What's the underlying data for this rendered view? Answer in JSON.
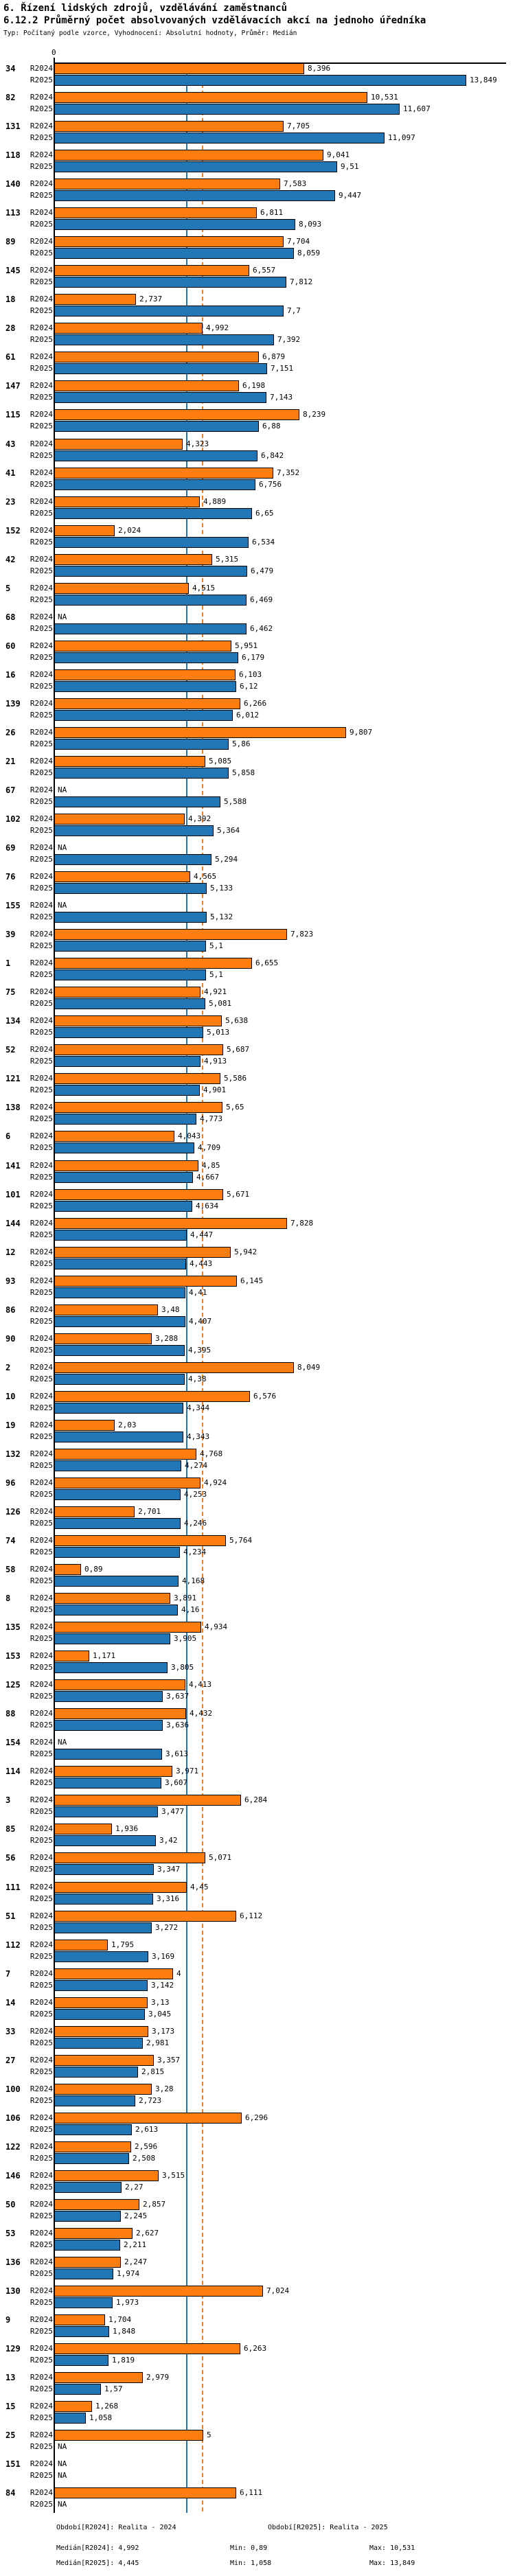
{
  "header": {
    "title_line1": "6. Řízení lidských zdrojů, vzdělávání zaměstnanců",
    "title_line2": "6.12.2 Průměrný počet absolvovaných vzdělávacích akcí na jednoho úředníka",
    "subtitle": "Typ: Počítaný podle vzorce, Vyhodnocení: Absolutní hodnoty, Průměr: Medián"
  },
  "axis": {
    "zero_label": "0"
  },
  "series_labels": {
    "r2024": "R2024",
    "r2025": "R2025"
  },
  "colors": {
    "r2024": "#fd7e0e",
    "r2025": "#2176b5",
    "axis": "#000000"
  },
  "medians": {
    "r2024": 4.992,
    "r2025": 4.445
  },
  "footer": {
    "period_r2024": "Období[R2024]: Realita - 2024",
    "period_r2025": "Období[R2025]: Realita - 2025",
    "median_r2024": "Medián[R2024]: 4,992",
    "min_r2024": "Min: 0,89",
    "max_r2024": "Max: 10,531",
    "median_r2025": "Medián[R2025]: 4,445",
    "min_r2025": "Min: 1,058",
    "max_r2025": "Max: 13,849"
  },
  "chart_data": {
    "type": "bar",
    "orientation": "horizontal",
    "title": "6.12.2 Průměrný počet absolvovaných vzdělávacích akcí na jednoho úředníka",
    "series_names": [
      "R2024",
      "R2025"
    ],
    "xlim": [
      0,
      13.849
    ],
    "x_ticks": [
      "0"
    ],
    "grid": false,
    "legend_position": "none",
    "median_lines": {
      "R2024": 4.992,
      "R2025": 4.445
    },
    "groups": [
      {
        "id": "34",
        "r2024": 8.396,
        "r2024_label": "8,396",
        "r2025": 13.849,
        "r2025_label": "13,849"
      },
      {
        "id": "82",
        "r2024": 10.531,
        "r2024_label": "10,531",
        "r2025": 11.607,
        "r2025_label": "11,607"
      },
      {
        "id": "131",
        "r2024": 7.705,
        "r2024_label": "7,705",
        "r2025": 11.097,
        "r2025_label": "11,097"
      },
      {
        "id": "118",
        "r2024": 9.041,
        "r2024_label": "9,041",
        "r2025": 9.51,
        "r2025_label": "9,51"
      },
      {
        "id": "140",
        "r2024": 7.583,
        "r2024_label": "7,583",
        "r2025": 9.447,
        "r2025_label": "9,447"
      },
      {
        "id": "113",
        "r2024": 6.811,
        "r2024_label": "6,811",
        "r2025": 8.093,
        "r2025_label": "8,093"
      },
      {
        "id": "89",
        "r2024": 7.704,
        "r2024_label": "7,704",
        "r2025": 8.059,
        "r2025_label": "8,059"
      },
      {
        "id": "145",
        "r2024": 6.557,
        "r2024_label": "6,557",
        "r2025": 7.812,
        "r2025_label": "7,812"
      },
      {
        "id": "18",
        "r2024": 2.737,
        "r2024_label": "2,737",
        "r2025": 7.7,
        "r2025_label": "7,7"
      },
      {
        "id": "28",
        "r2024": 4.992,
        "r2024_label": "4,992",
        "r2025": 7.392,
        "r2025_label": "7,392"
      },
      {
        "id": "61",
        "r2024": 6.879,
        "r2024_label": "6,879",
        "r2025": 7.151,
        "r2025_label": "7,151"
      },
      {
        "id": "147",
        "r2024": 6.198,
        "r2024_label": "6,198",
        "r2025": 7.143,
        "r2025_label": "7,143"
      },
      {
        "id": "115",
        "r2024": 8.239,
        "r2024_label": "8,239",
        "r2025": 6.88,
        "r2025_label": "6,88"
      },
      {
        "id": "43",
        "r2024": 4.323,
        "r2024_label": "4,323",
        "r2025": 6.842,
        "r2025_label": "6,842"
      },
      {
        "id": "41",
        "r2024": 7.352,
        "r2024_label": "7,352",
        "r2025": 6.756,
        "r2025_label": "6,756"
      },
      {
        "id": "23",
        "r2024": 4.889,
        "r2024_label": "4,889",
        "r2025": 6.65,
        "r2025_label": "6,65"
      },
      {
        "id": "152",
        "r2024": 2.024,
        "r2024_label": "2,024",
        "r2025": 6.534,
        "r2025_label": "6,534"
      },
      {
        "id": "42",
        "r2024": 5.315,
        "r2024_label": "5,315",
        "r2025": 6.479,
        "r2025_label": "6,479"
      },
      {
        "id": "5",
        "r2024": 4.515,
        "r2024_label": "4,515",
        "r2025": 6.469,
        "r2025_label": "6,469"
      },
      {
        "id": "68",
        "r2024": null,
        "r2024_label": "NA",
        "r2025": 6.462,
        "r2025_label": "6,462"
      },
      {
        "id": "60",
        "r2024": 5.951,
        "r2024_label": "5,951",
        "r2025": 6.179,
        "r2025_label": "6,179"
      },
      {
        "id": "16",
        "r2024": 6.103,
        "r2024_label": "6,103",
        "r2025": 6.12,
        "r2025_label": "6,12"
      },
      {
        "id": "139",
        "r2024": 6.266,
        "r2024_label": "6,266",
        "r2025": 6.012,
        "r2025_label": "6,012"
      },
      {
        "id": "26",
        "r2024": 9.807,
        "r2024_label": "9,807",
        "r2025": 5.86,
        "r2025_label": "5,86"
      },
      {
        "id": "21",
        "r2024": 5.085,
        "r2024_label": "5,085",
        "r2025": 5.858,
        "r2025_label": "5,858"
      },
      {
        "id": "67",
        "r2024": null,
        "r2024_label": "NA",
        "r2025": 5.588,
        "r2025_label": "5,588"
      },
      {
        "id": "102",
        "r2024": 4.392,
        "r2024_label": "4,392",
        "r2025": 5.364,
        "r2025_label": "5,364"
      },
      {
        "id": "69",
        "r2024": null,
        "r2024_label": "NA",
        "r2025": 5.294,
        "r2025_label": "5,294"
      },
      {
        "id": "76",
        "r2024": 4.565,
        "r2024_label": "4,565",
        "r2025": 5.133,
        "r2025_label": "5,133"
      },
      {
        "id": "155",
        "r2024": null,
        "r2024_label": "NA",
        "r2025": 5.132,
        "r2025_label": "5,132"
      },
      {
        "id": "39",
        "r2024": 7.823,
        "r2024_label": "7,823",
        "r2025": 5.1,
        "r2025_label": "5,1"
      },
      {
        "id": "1",
        "r2024": 6.655,
        "r2024_label": "6,655",
        "r2025": 5.1,
        "r2025_label": "5,1"
      },
      {
        "id": "75",
        "r2024": 4.921,
        "r2024_label": "4,921",
        "r2025": 5.081,
        "r2025_label": "5,081"
      },
      {
        "id": "134",
        "r2024": 5.638,
        "r2024_label": "5,638",
        "r2025": 5.013,
        "r2025_label": "5,013"
      },
      {
        "id": "52",
        "r2024": 5.687,
        "r2024_label": "5,687",
        "r2025": 4.913,
        "r2025_label": "4,913"
      },
      {
        "id": "121",
        "r2024": 5.586,
        "r2024_label": "5,586",
        "r2025": 4.901,
        "r2025_label": "4,901"
      },
      {
        "id": "138",
        "r2024": 5.65,
        "r2024_label": "5,65",
        "r2025": 4.773,
        "r2025_label": "4,773"
      },
      {
        "id": "6",
        "r2024": 4.043,
        "r2024_label": "4,043",
        "r2025": 4.709,
        "r2025_label": "4,709"
      },
      {
        "id": "141",
        "r2024": 4.85,
        "r2024_label": "4,85",
        "r2025": 4.667,
        "r2025_label": "4,667"
      },
      {
        "id": "101",
        "r2024": 5.671,
        "r2024_label": "5,671",
        "r2025": 4.634,
        "r2025_label": "4,634"
      },
      {
        "id": "144",
        "r2024": 7.828,
        "r2024_label": "7,828",
        "r2025": 4.447,
        "r2025_label": "4,447"
      },
      {
        "id": "12",
        "r2024": 5.942,
        "r2024_label": "5,942",
        "r2025": 4.443,
        "r2025_label": "4,443"
      },
      {
        "id": "93",
        "r2024": 6.145,
        "r2024_label": "6,145",
        "r2025": 4.41,
        "r2025_label": "4,41"
      },
      {
        "id": "86",
        "r2024": 3.48,
        "r2024_label": "3,48",
        "r2025": 4.407,
        "r2025_label": "4,407"
      },
      {
        "id": "90",
        "r2024": 3.288,
        "r2024_label": "3,288",
        "r2025": 4.395,
        "r2025_label": "4,395"
      },
      {
        "id": "2",
        "r2024": 8.049,
        "r2024_label": "8,049",
        "r2025": 4.38,
        "r2025_label": "4,38"
      },
      {
        "id": "10",
        "r2024": 6.576,
        "r2024_label": "6,576",
        "r2025": 4.344,
        "r2025_label": "4,344"
      },
      {
        "id": "19",
        "r2024": 2.03,
        "r2024_label": "2,03",
        "r2025": 4.343,
        "r2025_label": "4,343"
      },
      {
        "id": "132",
        "r2024": 4.768,
        "r2024_label": "4,768",
        "r2025": 4.274,
        "r2025_label": "4,274"
      },
      {
        "id": "96",
        "r2024": 4.924,
        "r2024_label": "4,924",
        "r2025": 4.253,
        "r2025_label": "4,253"
      },
      {
        "id": "126",
        "r2024": 2.701,
        "r2024_label": "2,701",
        "r2025": 4.246,
        "r2025_label": "4,246"
      },
      {
        "id": "74",
        "r2024": 5.764,
        "r2024_label": "5,764",
        "r2025": 4.234,
        "r2025_label": "4,234"
      },
      {
        "id": "58",
        "r2024": 0.89,
        "r2024_label": "0,89",
        "r2025": 4.168,
        "r2025_label": "4,168"
      },
      {
        "id": "8",
        "r2024": 3.891,
        "r2024_label": "3,891",
        "r2025": 4.16,
        "r2025_label": "4,16"
      },
      {
        "id": "135",
        "r2024": 4.934,
        "r2024_label": "4,934",
        "r2025": 3.905,
        "r2025_label": "3,905"
      },
      {
        "id": "153",
        "r2024": 1.171,
        "r2024_label": "1,171",
        "r2025": 3.805,
        "r2025_label": "3,805"
      },
      {
        "id": "125",
        "r2024": 4.413,
        "r2024_label": "4,413",
        "r2025": 3.637,
        "r2025_label": "3,637"
      },
      {
        "id": "88",
        "r2024": 4.432,
        "r2024_label": "4,432",
        "r2025": 3.636,
        "r2025_label": "3,636"
      },
      {
        "id": "154",
        "r2024": null,
        "r2024_label": "NA",
        "r2025": 3.613,
        "r2025_label": "3,613"
      },
      {
        "id": "114",
        "r2024": 3.971,
        "r2024_label": "3,971",
        "r2025": 3.607,
        "r2025_label": "3,607"
      },
      {
        "id": "3",
        "r2024": 6.284,
        "r2024_label": "6,284",
        "r2025": 3.477,
        "r2025_label": "3,477"
      },
      {
        "id": "85",
        "r2024": 1.936,
        "r2024_label": "1,936",
        "r2025": 3.42,
        "r2025_label": "3,42"
      },
      {
        "id": "56",
        "r2024": 5.071,
        "r2024_label": "5,071",
        "r2025": 3.347,
        "r2025_label": "3,347"
      },
      {
        "id": "111",
        "r2024": 4.45,
        "r2024_label": "4,45",
        "r2025": 3.316,
        "r2025_label": "3,316"
      },
      {
        "id": "51",
        "r2024": 6.112,
        "r2024_label": "6,112",
        "r2025": 3.272,
        "r2025_label": "3,272"
      },
      {
        "id": "112",
        "r2024": 1.795,
        "r2024_label": "1,795",
        "r2025": 3.169,
        "r2025_label": "3,169"
      },
      {
        "id": "7",
        "r2024": 4,
        "r2024_label": "4",
        "r2025": 3.142,
        "r2025_label": "3,142"
      },
      {
        "id": "14",
        "r2024": 3.13,
        "r2024_label": "3,13",
        "r2025": 3.045,
        "r2025_label": "3,045"
      },
      {
        "id": "33",
        "r2024": 3.173,
        "r2024_label": "3,173",
        "r2025": 2.981,
        "r2025_label": "2,981"
      },
      {
        "id": "27",
        "r2024": 3.357,
        "r2024_label": "3,357",
        "r2025": 2.815,
        "r2025_label": "2,815"
      },
      {
        "id": "100",
        "r2024": 3.28,
        "r2024_label": "3,28",
        "r2025": 2.723,
        "r2025_label": "2,723"
      },
      {
        "id": "106",
        "r2024": 6.296,
        "r2024_label": "6,296",
        "r2025": 2.613,
        "r2025_label": "2,613"
      },
      {
        "id": "122",
        "r2024": 2.596,
        "r2024_label": "2,596",
        "r2025": 2.508,
        "r2025_label": "2,508"
      },
      {
        "id": "146",
        "r2024": 3.515,
        "r2024_label": "3,515",
        "r2025": 2.27,
        "r2025_label": "2,27"
      },
      {
        "id": "50",
        "r2024": 2.857,
        "r2024_label": "2,857",
        "r2025": 2.245,
        "r2025_label": "2,245"
      },
      {
        "id": "53",
        "r2024": 2.627,
        "r2024_label": "2,627",
        "r2025": 2.211,
        "r2025_label": "2,211"
      },
      {
        "id": "136",
        "r2024": 2.247,
        "r2024_label": "2,247",
        "r2025": 1.974,
        "r2025_label": "1,974"
      },
      {
        "id": "130",
        "r2024": 7.024,
        "r2024_label": "7,024",
        "r2025": 1.973,
        "r2025_label": "1,973"
      },
      {
        "id": "9",
        "r2024": 1.704,
        "r2024_label": "1,704",
        "r2025": 1.848,
        "r2025_label": "1,848"
      },
      {
        "id": "129",
        "r2024": 6.263,
        "r2024_label": "6,263",
        "r2025": 1.819,
        "r2025_label": "1,819"
      },
      {
        "id": "13",
        "r2024": 2.979,
        "r2024_label": "2,979",
        "r2025": 1.57,
        "r2025_label": "1,57"
      },
      {
        "id": "15",
        "r2024": 1.268,
        "r2024_label": "1,268",
        "r2025": 1.058,
        "r2025_label": "1,058"
      },
      {
        "id": "25",
        "r2024": 5,
        "r2024_label": "5",
        "r2025": null,
        "r2025_label": "NA"
      },
      {
        "id": "151",
        "r2024": null,
        "r2024_label": "NA",
        "r2025": null,
        "r2025_label": "NA"
      },
      {
        "id": "84",
        "r2024": 6.111,
        "r2024_label": "6,111",
        "r2025": null,
        "r2025_label": "NA"
      }
    ]
  }
}
